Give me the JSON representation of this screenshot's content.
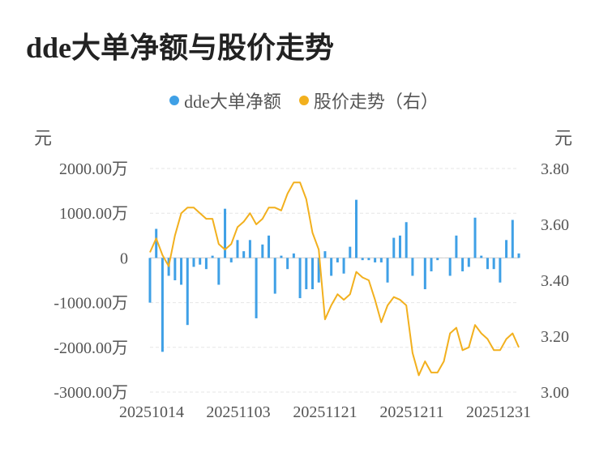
{
  "title": "dde大单净额与股价走势",
  "legend": [
    {
      "label": "dde大单净额",
      "color": "#3fa0e6"
    },
    {
      "label": "股价走势（右）",
      "color": "#f2b01e"
    }
  ],
  "chart_data": {
    "type": "bar+line",
    "title": "dde大单净额与股价走势",
    "left_unit": "元",
    "right_unit": "元",
    "left_ticks": [
      "2000.00万",
      "1000.00万",
      "0",
      "-1000.00万",
      "-2000.00万",
      "-3000.00万"
    ],
    "right_ticks": [
      "3.80",
      "3.60",
      "3.40",
      "3.20",
      "3.00"
    ],
    "x_labels": [
      "20251014",
      "20251103",
      "20251121",
      "20251211",
      "20251231"
    ],
    "ylim_left": [
      -3000,
      2000
    ],
    "ylim_right": [
      3.0,
      3.8
    ],
    "grid": true,
    "legend_position": "top",
    "series": [
      {
        "name": "dde大单净额",
        "type": "bar",
        "axis": "left",
        "unit": "万",
        "values": [
          -1000,
          650,
          -2100,
          -400,
          -500,
          -600,
          -1500,
          -200,
          -150,
          -250,
          50,
          -600,
          1100,
          -100,
          400,
          150,
          400,
          -1350,
          300,
          500,
          -800,
          50,
          -250,
          100,
          -900,
          -700,
          -700,
          -550,
          150,
          -400,
          -100,
          -350,
          250,
          1300,
          -50,
          -50,
          -100,
          -100,
          -550,
          450,
          500,
          800,
          -400,
          0,
          -700,
          -300,
          -50,
          0,
          -400,
          500,
          -300,
          -200,
          900,
          50,
          -250,
          -250,
          -550,
          400,
          850,
          100
        ]
      },
      {
        "name": "股价走势（右）",
        "type": "line",
        "axis": "right",
        "values": [
          3.5,
          3.55,
          3.49,
          3.45,
          3.56,
          3.64,
          3.66,
          3.66,
          3.64,
          3.62,
          3.62,
          3.53,
          3.51,
          3.53,
          3.59,
          3.61,
          3.64,
          3.6,
          3.62,
          3.66,
          3.66,
          3.65,
          3.71,
          3.75,
          3.75,
          3.69,
          3.57,
          3.51,
          3.26,
          3.31,
          3.35,
          3.33,
          3.35,
          3.43,
          3.41,
          3.4,
          3.33,
          3.25,
          3.31,
          3.34,
          3.33,
          3.31,
          3.14,
          3.06,
          3.11,
          3.07,
          3.07,
          3.11,
          3.21,
          3.23,
          3.15,
          3.16,
          3.24,
          3.21,
          3.19,
          3.15,
          3.15,
          3.19,
          3.21,
          3.16
        ]
      }
    ]
  }
}
